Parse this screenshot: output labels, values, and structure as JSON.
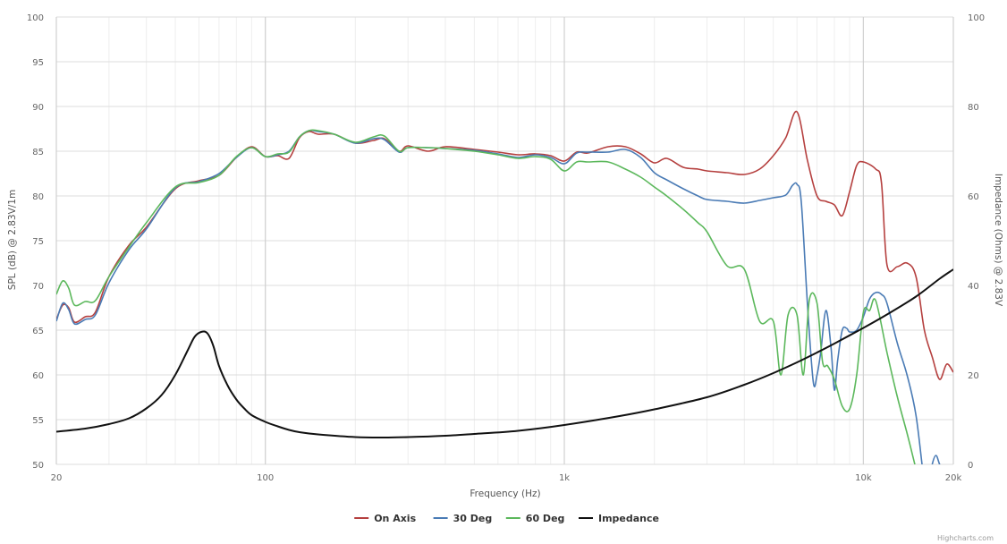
{
  "credit": "Highcharts.com",
  "chart_data": {
    "type": "line",
    "x_scale": "log",
    "xlabel": "Frequency (Hz)",
    "ylabel_left": "SPL (dB) @ 2.83V/1m",
    "ylabel_right": "Impedance (Ohms) @ 2.83V",
    "xlim": [
      20,
      20000
    ],
    "ylim_left": [
      50,
      100
    ],
    "ylim_right": [
      0,
      100
    ],
    "grid": true,
    "legend_position": "bottom-center",
    "x_ticks": [
      {
        "value": 20,
        "label": "20"
      },
      {
        "value": 100,
        "label": "100"
      },
      {
        "value": 1000,
        "label": "1k"
      },
      {
        "value": 10000,
        "label": "10k"
      },
      {
        "value": 20000,
        "label": "20k"
      }
    ],
    "y_ticks_left": [
      "50",
      "55",
      "60",
      "65",
      "70",
      "75",
      "80",
      "85",
      "90",
      "95",
      "100"
    ],
    "y_ticks_right": [
      "0",
      "20",
      "40",
      "60",
      "80",
      "100"
    ],
    "series": [
      {
        "name": "On Axis",
        "axis": "left",
        "color": "#b5403f",
        "x": [
          20,
          21,
          22,
          23,
          25,
          27,
          30,
          35,
          40,
          50,
          60,
          70,
          80,
          90,
          100,
          110,
          120,
          130,
          140,
          150,
          170,
          200,
          230,
          250,
          280,
          300,
          350,
          400,
          500,
          600,
          700,
          800,
          900,
          1000,
          1100,
          1200,
          1400,
          1600,
          1800,
          2000,
          2200,
          2500,
          2800,
          3000,
          3500,
          4000,
          4500,
          5000,
          5500,
          6000,
          6500,
          7000,
          7500,
          8000,
          8500,
          9000,
          9500,
          10000,
          11000,
          11500,
          12000,
          13000,
          14000,
          15000,
          16000,
          17000,
          18000,
          19000,
          20000
        ],
        "y": [
          66.2,
          67.8,
          67.5,
          65.9,
          66.5,
          67,
          71,
          74.5,
          76.5,
          80.8,
          81.7,
          82.3,
          84.3,
          85.5,
          84.4,
          84.5,
          84.2,
          86.5,
          87.2,
          86.9,
          86.9,
          85.9,
          86.2,
          86.4,
          85,
          85.6,
          85,
          85.5,
          85.2,
          84.9,
          84.6,
          84.7,
          84.5,
          83.9,
          84.9,
          84.8,
          85.5,
          85.5,
          84.7,
          83.7,
          84.2,
          83.2,
          83,
          82.8,
          82.6,
          82.4,
          83,
          84.5,
          86.5,
          89.4,
          84,
          80,
          79.4,
          79,
          77.8,
          80.5,
          83.4,
          83.8,
          83,
          81.5,
          72.3,
          72.1,
          72.5,
          71,
          65,
          62,
          59.5,
          61.2,
          60.3
        ]
      },
      {
        "name": "30 Deg",
        "axis": "left",
        "color": "#4a7bb5",
        "x": [
          20,
          21,
          22,
          23,
          25,
          27,
          30,
          35,
          40,
          50,
          60,
          70,
          80,
          90,
          100,
          110,
          120,
          130,
          140,
          150,
          170,
          200,
          230,
          250,
          280,
          300,
          350,
          400,
          500,
          600,
          700,
          800,
          900,
          1000,
          1100,
          1200,
          1400,
          1600,
          1800,
          2000,
          2200,
          2500,
          2800,
          3000,
          3500,
          4000,
          4500,
          5000,
          5500,
          5800,
          6000,
          6200,
          6500,
          6800,
          7000,
          7200,
          7500,
          7800,
          8000,
          8200,
          8500,
          8800,
          9000,
          9500,
          10000,
          10500,
          11000,
          11500,
          12000,
          13000,
          14000,
          15000,
          16000,
          16500,
          17000,
          17500,
          18000,
          18500,
          19000,
          20000
        ],
        "y": [
          66,
          68,
          67.3,
          65.7,
          66.2,
          66.7,
          70.3,
          74,
          76.3,
          80.9,
          81.6,
          82.5,
          84.3,
          85.4,
          84.4,
          84.6,
          85,
          86.6,
          87.3,
          87.2,
          86.9,
          85.9,
          86.4,
          86.3,
          84.9,
          85.4,
          85.4,
          85.3,
          85.1,
          84.7,
          84.3,
          84.6,
          84.3,
          83.6,
          84.8,
          84.9,
          84.9,
          85.2,
          84.3,
          82.6,
          81.8,
          80.8,
          80,
          79.6,
          79.4,
          79.2,
          79.5,
          79.8,
          80.1,
          81.2,
          81.3,
          79.4,
          68,
          59.2,
          60,
          62.5,
          67.2,
          63,
          58.3,
          61.5,
          65,
          65.2,
          64.8,
          65,
          66.5,
          68.5,
          69.2,
          69,
          68,
          63.5,
          60,
          55.5,
          48,
          47.5,
          50,
          51,
          50,
          49.5,
          49,
          49
        ]
      },
      {
        "name": "60 Deg",
        "axis": "left",
        "color": "#5cb85c",
        "x": [
          20,
          21,
          22,
          23,
          25,
          27,
          30,
          35,
          40,
          50,
          60,
          70,
          80,
          90,
          100,
          110,
          120,
          130,
          140,
          150,
          170,
          200,
          230,
          250,
          280,
          300,
          350,
          400,
          500,
          600,
          700,
          800,
          900,
          1000,
          1100,
          1200,
          1400,
          1600,
          1800,
          2000,
          2200,
          2500,
          2800,
          3000,
          3500,
          4000,
          4500,
          5000,
          5300,
          5600,
          6000,
          6300,
          6600,
          7000,
          7300,
          7600,
          8000,
          8500,
          9000,
          9500,
          10000,
          10500,
          11000,
          12000,
          13000,
          14000,
          15000,
          16000
        ],
        "y": [
          69,
          70.5,
          69.7,
          67.8,
          68.2,
          68.3,
          71,
          74.3,
          77,
          81,
          81.5,
          82.3,
          84.4,
          85.4,
          84.4,
          84.7,
          84.9,
          86.6,
          87.3,
          87.3,
          86.9,
          86,
          86.6,
          86.7,
          85,
          85.4,
          85.4,
          85.3,
          85,
          84.6,
          84.2,
          84.4,
          84.1,
          82.8,
          83.8,
          83.8,
          83.8,
          83,
          82.1,
          81,
          80,
          78.5,
          77,
          76,
          72.2,
          71.8,
          66,
          66,
          60,
          66.7,
          66.7,
          60,
          68.4,
          68,
          61.5,
          61,
          59.5,
          56.5,
          56.2,
          60,
          67,
          67.2,
          68.3,
          62.5,
          57.5,
          53.5,
          49.5,
          46
        ]
      },
      {
        "name": "Impedance",
        "axis": "right",
        "color": "#111111",
        "x": [
          20,
          25,
          30,
          35,
          40,
          45,
          50,
          55,
          58,
          61,
          64,
          67,
          70,
          75,
          80,
          85,
          90,
          100,
          110,
          120,
          130,
          150,
          200,
          250,
          300,
          400,
          500,
          700,
          1000,
          1500,
          2000,
          3000,
          4000,
          5000,
          6000,
          7000,
          8000,
          10000,
          12000,
          15000,
          18000,
          20000
        ],
        "y": [
          7.3,
          8,
          9,
          10.3,
          12.5,
          15.5,
          20,
          25.5,
          28.5,
          29.6,
          29.3,
          26.5,
          22,
          17.5,
          14.5,
          12.5,
          11,
          9.5,
          8.5,
          7.7,
          7.2,
          6.7,
          6.1,
          6,
          6.1,
          6.4,
          6.8,
          7.5,
          8.8,
          10.7,
          12.3,
          15,
          17.8,
          20.4,
          22.8,
          25,
          27,
          30.5,
          33.5,
          37.5,
          41.5,
          43.6
        ]
      }
    ]
  }
}
